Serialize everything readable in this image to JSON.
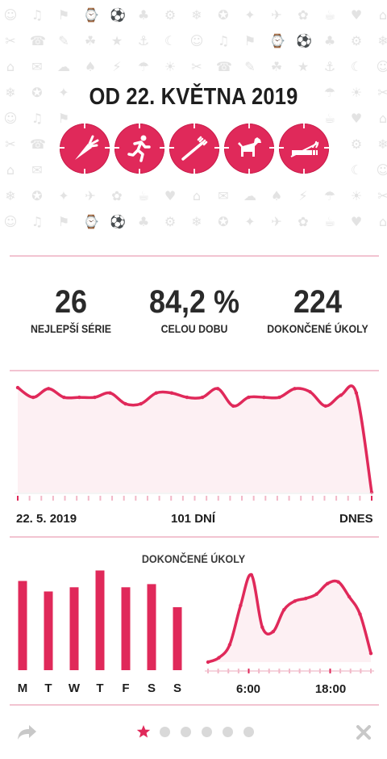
{
  "header": {
    "title": "OD 22. KVĚTNA 2019",
    "habits": [
      {
        "icon": "carrot-icon"
      },
      {
        "icon": "running-icon"
      },
      {
        "icon": "toothbrush-icon"
      },
      {
        "icon": "dog-icon"
      },
      {
        "icon": "cigarette-icon"
      }
    ]
  },
  "stats": [
    {
      "value": "26",
      "label": "NEJLEPŠÍ SÉRIE"
    },
    {
      "value": "84,2 %",
      "label": "CELOU DOBU"
    },
    {
      "value": "224",
      "label": "DOKONČENÉ ÚKOLY"
    }
  ],
  "history": {
    "start_label": "22. 5. 2019",
    "middle_label": "101 DNÍ",
    "end_label": "DNES"
  },
  "completed": {
    "title": "DOKONČENÉ ÚKOLY",
    "hour_labels": [
      "6:00",
      "18:00"
    ]
  },
  "footer": {
    "page_count": 6,
    "active_page": 0
  },
  "colors": {
    "accent": "#e0295a",
    "fill": "#fdf0f3",
    "divider": "#f2c4d1",
    "dot": "#d9d9d9"
  },
  "chart_data": [
    {
      "type": "area",
      "title": "",
      "x_labels": [
        "22. 5. 2019",
        "101 DNÍ",
        "DNES"
      ],
      "values": [
        0.97,
        0.88,
        0.96,
        0.88,
        0.88,
        0.88,
        0.92,
        0.82,
        0.82,
        0.92,
        0.92,
        0.88,
        0.88,
        0.96,
        0.8,
        0.88,
        0.88,
        0.88,
        0.96,
        0.93,
        0.8,
        0.9,
        0.92,
        0.0
      ]
    },
    {
      "type": "bar",
      "title": "DOKONČENÉ ÚKOLY",
      "categories": [
        "M",
        "T",
        "W",
        "T",
        "F",
        "S",
        "S"
      ],
      "values": [
        0.85,
        0.75,
        0.79,
        0.95,
        0.79,
        0.82,
        0.6
      ]
    },
    {
      "type": "area",
      "title": "DOKONČENÉ ÚKOLY",
      "x_labels": [
        "6:00",
        "18:00"
      ],
      "values": [
        0.0,
        0.05,
        0.2,
        0.65,
        1.0,
        0.4,
        0.35,
        0.6,
        0.7,
        0.73,
        0.78,
        0.9,
        0.92,
        0.75,
        0.55,
        0.1
      ]
    }
  ]
}
